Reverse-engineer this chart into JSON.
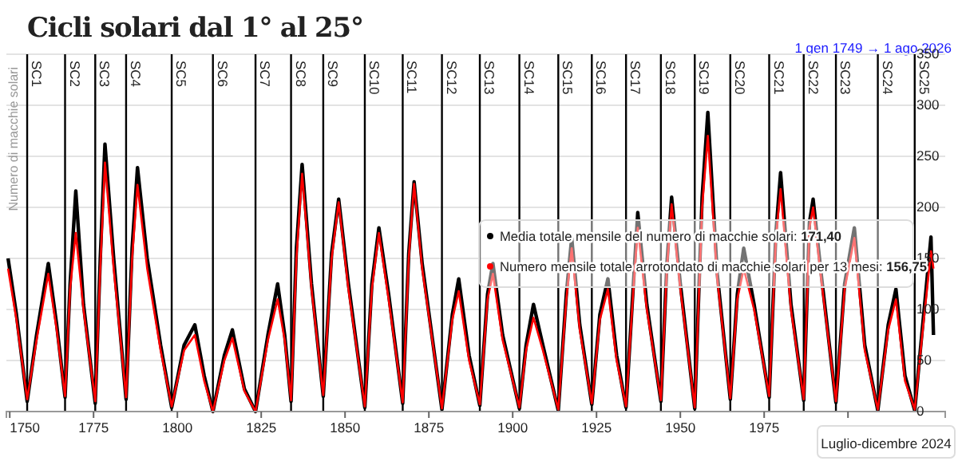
{
  "chart_data": {
    "type": "line",
    "title": "Cicli solari dal 1° al 25°",
    "subtitle": "1 gen 1749 → 1 ago 2026",
    "ylabel": "Numero di macchie solari",
    "xlim": [
      1749,
      2029
    ],
    "xticks": [
      1750,
      1775,
      1800,
      1825,
      1850,
      1875,
      1900,
      1925,
      1950,
      1975,
      {
        "value": 2000,
        "label": null
      }
    ],
    "ylim": [
      0,
      350
    ],
    "yticks": [
      0,
      50,
      100,
      150,
      200,
      250,
      300,
      350
    ],
    "grid": "y",
    "marker": "none",
    "line_style": "solid",
    "x": [
      1749.5,
      1752,
      1755.2,
      1758,
      1761.5,
      1764,
      1766.5,
      1768,
      1769.7,
      1772,
      1775.5,
      1777,
      1778.4,
      1781,
      1784.7,
      1786.5,
      1788.1,
      1791,
      1795,
      1798.3,
      1802,
      1805.2,
      1808,
      1810.6,
      1814,
      1816.4,
      1820,
      1823.3,
      1827,
      1829.9,
      1832,
      1833.9,
      1835.5,
      1837.2,
      1840,
      1843.5,
      1846,
      1848.1,
      1851,
      1855.9,
      1858,
      1860.1,
      1863,
      1867.2,
      1869,
      1870.6,
      1873,
      1878.9,
      1882,
      1883.9,
      1887,
      1890.2,
      1892.5,
      1894.1,
      1897,
      1902,
      1904,
      1906.2,
      1909,
      1913.6,
      1916,
      1917.6,
      1920,
      1923.6,
      1926,
      1928.4,
      1931,
      1933.8,
      1936,
      1937.3,
      1940,
      1944.2,
      1946,
      1947.4,
      1950,
      1954.3,
      1956.5,
      1958.2,
      1961,
      1964.9,
      1967,
      1968.9,
      1972,
      1976.5,
      1978.5,
      1979.9,
      1983,
      1986.8,
      1988.5,
      1989.6,
      1992,
      1996.4,
      1999,
      2001.9,
      2005,
      2008.9,
      2012,
      2014.3,
      2017,
      2019.9,
      2022,
      2024.75,
      2025.5
    ],
    "series": [
      {
        "color": "#000000",
        "values": [
          150,
          95,
          10,
          75,
          145,
          85,
          14,
          125,
          216,
          105,
          8,
          150,
          262,
          150,
          12,
          160,
          239,
          150,
          65,
          4,
          65,
          85,
          35,
          0,
          55,
          80,
          22,
          0,
          75,
          125,
          75,
          10,
          160,
          242,
          125,
          15,
          155,
          208,
          125,
          4,
          125,
          180,
          115,
          8,
          155,
          225,
          145,
          2,
          95,
          130,
          55,
          6,
          115,
          145,
          75,
          3,
          65,
          105,
          65,
          1,
          115,
          170,
          85,
          7,
          95,
          130,
          55,
          4,
          125,
          195,
          105,
          10,
          145,
          210,
          125,
          3,
          210,
          293,
          135,
          12,
          115,
          160,
          105,
          14,
          175,
          234,
          105,
          11,
          185,
          208,
          135,
          9,
          125,
          180,
          65,
          1,
          85,
          120,
          35,
          1,
          75,
          171,
          75
        ]
      },
      {
        "color": "#ff0000",
        "values": [
          140,
          90,
          12,
          70,
          135,
          80,
          15,
          120,
          175,
          100,
          10,
          140,
          244,
          140,
          14,
          150,
          222,
          140,
          60,
          5,
          60,
          75,
          30,
          0,
          50,
          72,
          20,
          0,
          70,
          110,
          70,
          11,
          150,
          233,
          120,
          16,
          150,
          205,
          120,
          5,
          120,
          175,
          110,
          9,
          150,
          223,
          140,
          3,
          90,
          118,
          50,
          7,
          110,
          135,
          70,
          4,
          60,
          92,
          60,
          2,
          110,
          160,
          80,
          8,
          90,
          120,
          50,
          5,
          120,
          180,
          100,
          11,
          140,
          203,
          120,
          4,
          200,
          270,
          130,
          13,
          110,
          140,
          100,
          15,
          170,
          218,
          100,
          12,
          180,
          200,
          130,
          10,
          120,
          170,
          60,
          2,
          80,
          110,
          30,
          2,
          70,
          157,
          140
        ]
      }
    ],
    "ref_lines": [
      {
        "axis": "x",
        "value": 1755.2,
        "label": "SC1"
      },
      {
        "axis": "x",
        "value": 1766.5,
        "label": "SC2"
      },
      {
        "axis": "x",
        "value": 1775.5,
        "label": "SC3"
      },
      {
        "axis": "x",
        "value": 1784.7,
        "label": "SC4"
      },
      {
        "axis": "x",
        "value": 1798.3,
        "label": "SC5"
      },
      {
        "axis": "x",
        "value": 1810.6,
        "label": "SC6"
      },
      {
        "axis": "x",
        "value": 1823.3,
        "label": "SC7"
      },
      {
        "axis": "x",
        "value": 1833.9,
        "label": "SC8"
      },
      {
        "axis": "x",
        "value": 1843.5,
        "label": "SC9"
      },
      {
        "axis": "x",
        "value": 1855.9,
        "label": "SC10"
      },
      {
        "axis": "x",
        "value": 1867.2,
        "label": "SC11"
      },
      {
        "axis": "x",
        "value": 1878.9,
        "label": "SC12"
      },
      {
        "axis": "x",
        "value": 1890.2,
        "label": "SC13"
      },
      {
        "axis": "x",
        "value": 1902.0,
        "label": "SC14"
      },
      {
        "axis": "x",
        "value": 1913.6,
        "label": "SC15"
      },
      {
        "axis": "x",
        "value": 1923.6,
        "label": "SC16"
      },
      {
        "axis": "x",
        "value": 1933.8,
        "label": "SC17"
      },
      {
        "axis": "x",
        "value": 1944.2,
        "label": "SC18"
      },
      {
        "axis": "x",
        "value": 1954.3,
        "label": "SC19"
      },
      {
        "axis": "x",
        "value": 1964.9,
        "label": "SC20"
      },
      {
        "axis": "x",
        "value": 1976.5,
        "label": "SC21"
      },
      {
        "axis": "x",
        "value": 1986.8,
        "label": "SC22"
      },
      {
        "axis": "x",
        "value": 1996.4,
        "label": "SC23"
      },
      {
        "axis": "x",
        "value": 2008.9,
        "label": "SC24"
      },
      {
        "axis": "x",
        "value": 2019.9,
        "label": "SC25"
      }
    ],
    "annotations": [
      "Media totale mensile del numero di macchie solari: 171,40",
      "Numero mensile totale arrotondato di macchie solari per 13 mesi: 156,75",
      "Luglio-dicembre 2024"
    ]
  }
}
